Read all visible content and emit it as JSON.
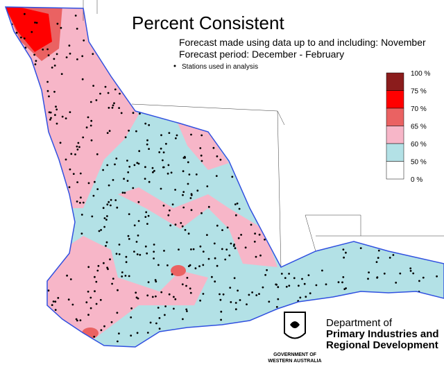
{
  "header": {
    "title": "Percent Consistent",
    "line1": "Forecast made using data up to and including: November",
    "line2": "Forecast period: December - February",
    "stations": "Stations used in analysis"
  },
  "legend": {
    "labels": [
      "100 %",
      "75 %",
      "70 %",
      "65 %",
      "60 %",
      "50 %",
      "0 %"
    ],
    "colors": [
      "#8b1c1c",
      "#ff0000",
      "#ea6262",
      "#f7b6c8",
      "#b3e1e6",
      "#ffffff"
    ]
  },
  "logo": {
    "department": "Department of",
    "line2": "Primary Industries and",
    "line3": "Regional Development",
    "gov1": "GOVERNMENT OF",
    "gov2": "WESTERN AUSTRALIA"
  }
}
